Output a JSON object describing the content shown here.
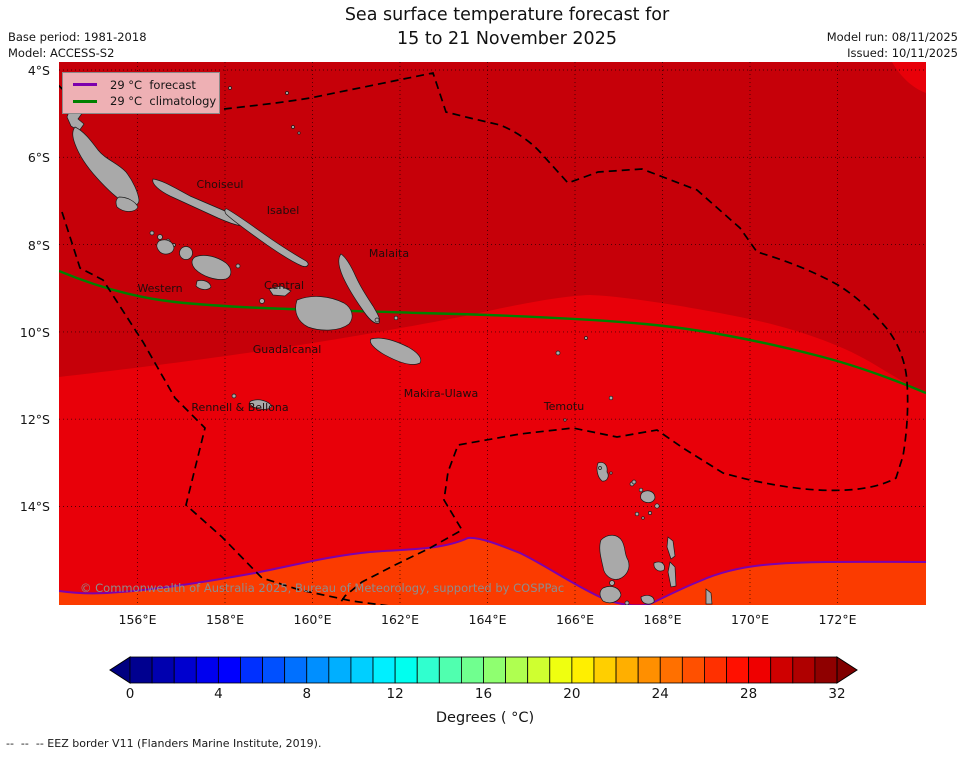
{
  "title": {
    "line1": "Sea surface temperature forecast for",
    "line2": "15 to 21 November 2025"
  },
  "meta": {
    "base_period": "Base period: 1981-2018",
    "model": "Model: ACCESS-S2",
    "model_run": "Model run: 08/11/2025",
    "issued": "Issued: 10/11/2025"
  },
  "legend": {
    "items": [
      {
        "label": "29 °C  forecast",
        "color": "#7d00ad"
      },
      {
        "label": "29 °C  climatology",
        "color": "#008000"
      }
    ]
  },
  "map": {
    "island_labels": [
      "Choiseul",
      "Isabel",
      "Malaita",
      "Western",
      "Central",
      "Guadalcanal",
      "Makira-Ulawa",
      "Rennell & Bellona",
      "Temotu"
    ],
    "copyright": "© Commonwealth of Australia 2025, Bureau of Meteorology, supported by COSPPac",
    "lat_ticks": [
      "4°S",
      "6°S",
      "8°S",
      "10°S",
      "12°S",
      "14°S"
    ],
    "lon_ticks": [
      "156°E",
      "158°E",
      "160°E",
      "162°E",
      "164°E",
      "166°E",
      "168°E",
      "170°E",
      "172°E"
    ],
    "colors": {
      "sst_warm_band": "#c60009",
      "sst_mid_band": "#e80009",
      "sst_cool_band": "#fb3b00",
      "land": "#a9a9a9",
      "forecast_line": "#7d00ad",
      "climatology_line": "#008000"
    }
  },
  "colorbar": {
    "label": "Degrees ( °C)",
    "ticks": [
      "0",
      "4",
      "8",
      "12",
      "16",
      "20",
      "24",
      "28",
      "32"
    ],
    "cells": [
      "#000080",
      "#00008f",
      "#0000af",
      "#0000cf",
      "#0000ef",
      "#0000ff",
      "#0030ff",
      "#0050ff",
      "#0070ff",
      "#008fff",
      "#00afff",
      "#00cfff",
      "#00efff",
      "#00ffef",
      "#30ffcf",
      "#50ffaf",
      "#70ff8f",
      "#8fff70",
      "#afff50",
      "#cfff30",
      "#efff10",
      "#ffef00",
      "#ffcf00",
      "#ffaf00",
      "#ff8f00",
      "#ff7000",
      "#ff5000",
      "#ff3000",
      "#ff1000",
      "#ef0000",
      "#cf0000",
      "#af0000",
      "#8f0000",
      "#800000"
    ]
  },
  "footnote": "--  --  -- EEZ border V11 (Flanders Marine Institute, 2019).",
  "chart_data": {
    "type": "heatmap",
    "title": "Sea surface temperature forecast for 15 to 21 November 2025",
    "colorbar_ticks": [
      0,
      4,
      8,
      12,
      16,
      20,
      24,
      28,
      32
    ],
    "colorbar_label": "Degrees ( °C)",
    "contours": [
      {
        "name": "29 °C forecast",
        "color": "#7d00ad"
      },
      {
        "name": "29 °C climatology",
        "color": "#008000"
      }
    ]
  }
}
